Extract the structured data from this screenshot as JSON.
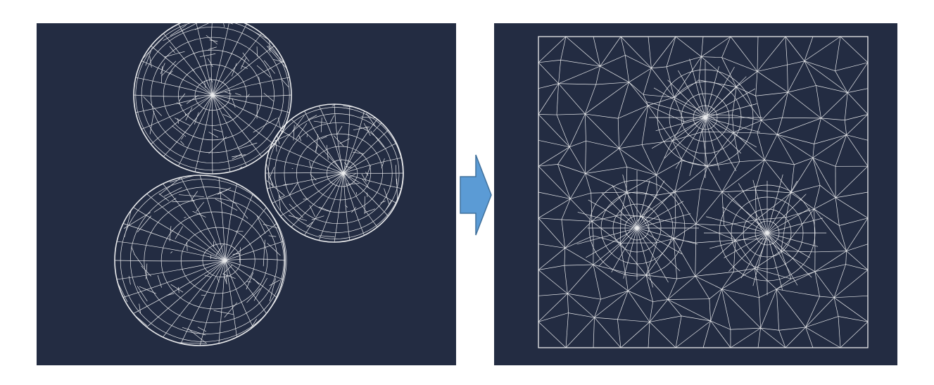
{
  "figure": {
    "left_panel": {
      "description_type": "mesh-of-three-spheres",
      "sphere_count": 3
    },
    "right_panel": {
      "description_type": "flattened-square-mesh",
      "pole_count": 3
    },
    "arrow": {
      "direction": "right"
    },
    "colors": {
      "panel_background": "#232c42",
      "mesh_lines": "#ffffff",
      "arrow_fill": "#5b9bd5",
      "arrow_stroke": "#41719c"
    }
  }
}
